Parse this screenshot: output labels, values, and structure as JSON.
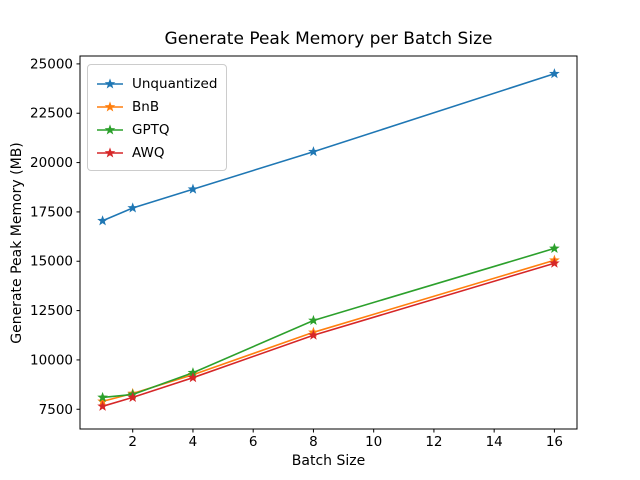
{
  "chart_data": {
    "type": "line",
    "title": "Generate Peak Memory per Batch Size",
    "xlabel": "Batch Size",
    "ylabel": "Generate Peak Memory (MB)",
    "x": [
      1,
      2,
      4,
      8,
      16
    ],
    "series": [
      {
        "name": "Unquantized",
        "color": "#1f77b4",
        "values": [
          17050,
          17700,
          18650,
          20550,
          24500
        ]
      },
      {
        "name": "BnB",
        "color": "#ff7f0e",
        "values": [
          7900,
          8300,
          9250,
          11400,
          15050
        ]
      },
      {
        "name": "GPTQ",
        "color": "#2ca02c",
        "values": [
          8100,
          8250,
          9350,
          12000,
          15650
        ]
      },
      {
        "name": "AWQ",
        "color": "#d62728",
        "values": [
          7650,
          8100,
          9100,
          11250,
          14900
        ]
      }
    ],
    "xticks": [
      2,
      4,
      6,
      8,
      10,
      12,
      14,
      16
    ],
    "yticks": [
      7500,
      10000,
      12500,
      15000,
      17500,
      20000,
      22500,
      25000
    ],
    "xlim": [
      0.25,
      16.75
    ],
    "ylim": [
      6500,
      25400
    ],
    "marker": "star",
    "grid": false,
    "legend_position": "upper-left",
    "axes_color": "#000000",
    "background_color": "#ffffff"
  }
}
